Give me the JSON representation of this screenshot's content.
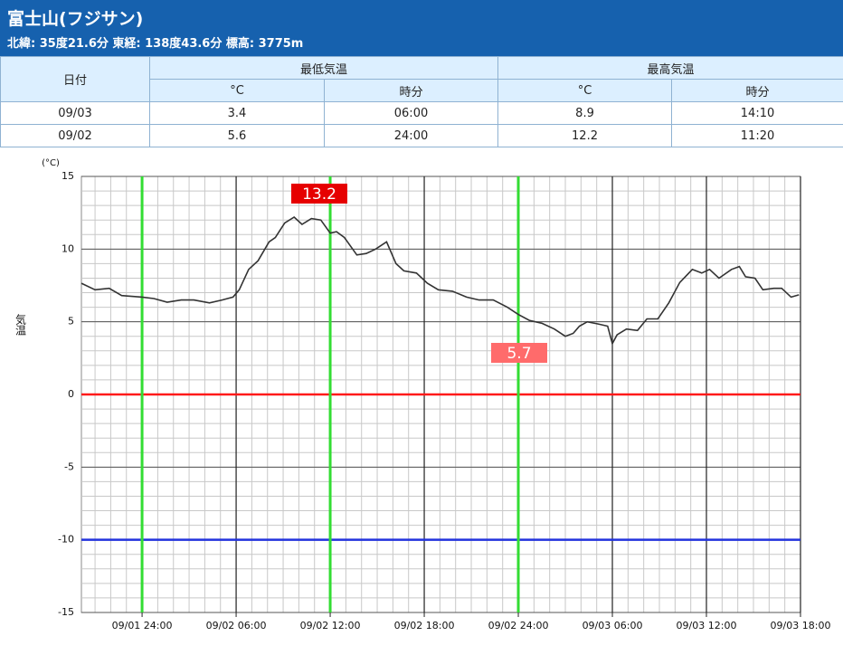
{
  "header": {
    "title": "富士山(フジサン)",
    "subtitle": "北緯: 35度21.6分 東経: 138度43.6分 標高: 3775m"
  },
  "table": {
    "columns": [
      "日付",
      "最低気温",
      "最高気温"
    ],
    "subcolumns": [
      "°C",
      "時分",
      "°C",
      "時分"
    ],
    "rows": [
      [
        "09/03",
        "3.4",
        "06:00",
        "8.9",
        "14:10"
      ],
      [
        "09/02",
        "5.6",
        "24:00",
        "12.2",
        "11:20"
      ]
    ]
  },
  "chart_data": {
    "type": "line",
    "y_label": "気温",
    "y_unit": "(°C)",
    "xlim": [
      -3.87,
      42
    ],
    "ylim": [
      -15,
      15
    ],
    "xticks": [
      {
        "value": 0,
        "label": "09/01 24:00"
      },
      {
        "value": 6,
        "label": "09/02 06:00"
      },
      {
        "value": 12,
        "label": "09/02 12:00"
      },
      {
        "value": 18,
        "label": "09/02 18:00"
      },
      {
        "value": 24,
        "label": "09/02 24:00"
      },
      {
        "value": 30,
        "label": "09/03 06:00"
      },
      {
        "value": 36,
        "label": "09/03 12:00"
      },
      {
        "value": 42,
        "label": "09/03 18:00"
      }
    ],
    "yticks": [
      -15,
      -10,
      -5,
      0,
      5,
      10,
      15
    ],
    "x_minor_step": 1,
    "y_minor_step": 1,
    "hlines": [
      {
        "value": 0,
        "color": "#ff1a1a"
      },
      {
        "value": -10,
        "color": "#2233dd"
      }
    ],
    "vlines": [
      {
        "value": 0,
        "color": "#33dd33"
      },
      {
        "value": 12,
        "color": "#33dd33"
      },
      {
        "value": 24,
        "color": "#33dd33"
      }
    ],
    "annotations": [
      {
        "value": 13.2,
        "color": "#e60000"
      },
      {
        "value": 5.7,
        "color": "#ff6b6b"
      }
    ],
    "series": [
      {
        "color": "#333333",
        "x": [
          -3.87,
          -3.0,
          -2.1,
          -1.3,
          0,
          0.75,
          1.6,
          2.5,
          3.3,
          4.3,
          5.1,
          5.8,
          6.2,
          6.8,
          7.4,
          8.1,
          8.5,
          9.1,
          9.7,
          10.2,
          10.8,
          11.4,
          12.0,
          12.4,
          12.9,
          13.7,
          14.3,
          14.9,
          15.6,
          16.2,
          16.7,
          17.5,
          18.2,
          18.9,
          19.8,
          20.7,
          21.5,
          22.4,
          23.3,
          24.0,
          24.7,
          25.5,
          26.3,
          27.0,
          27.5,
          27.9,
          28.4,
          29.1,
          29.7,
          30.0,
          30.3,
          30.9,
          31.6,
          32.2,
          32.9,
          33.6,
          34.3,
          35.1,
          35.7,
          36.2,
          36.8,
          37.6,
          38.1,
          38.5,
          39.1,
          39.6,
          40.3,
          40.8,
          41.4,
          41.9
        ],
        "values": [
          7.65,
          7.2,
          7.3,
          6.8,
          6.7,
          6.6,
          6.35,
          6.5,
          6.5,
          6.3,
          6.5,
          6.7,
          7.2,
          8.6,
          9.2,
          10.5,
          10.8,
          11.8,
          12.2,
          11.7,
          12.1,
          12.0,
          11.1,
          11.2,
          10.8,
          9.6,
          9.7,
          10.0,
          10.5,
          9.0,
          8.5,
          8.35,
          7.65,
          7.2,
          7.1,
          6.7,
          6.5,
          6.5,
          6.0,
          5.5,
          5.1,
          4.9,
          4.5,
          4.0,
          4.2,
          4.7,
          5.0,
          4.85,
          4.7,
          3.5,
          4.1,
          4.5,
          4.4,
          5.2,
          5.2,
          6.3,
          7.7,
          8.6,
          8.35,
          8.6,
          8.0,
          8.6,
          8.8,
          8.1,
          8.0,
          7.2,
          7.3,
          7.3,
          6.7,
          6.85
        ]
      }
    ]
  }
}
